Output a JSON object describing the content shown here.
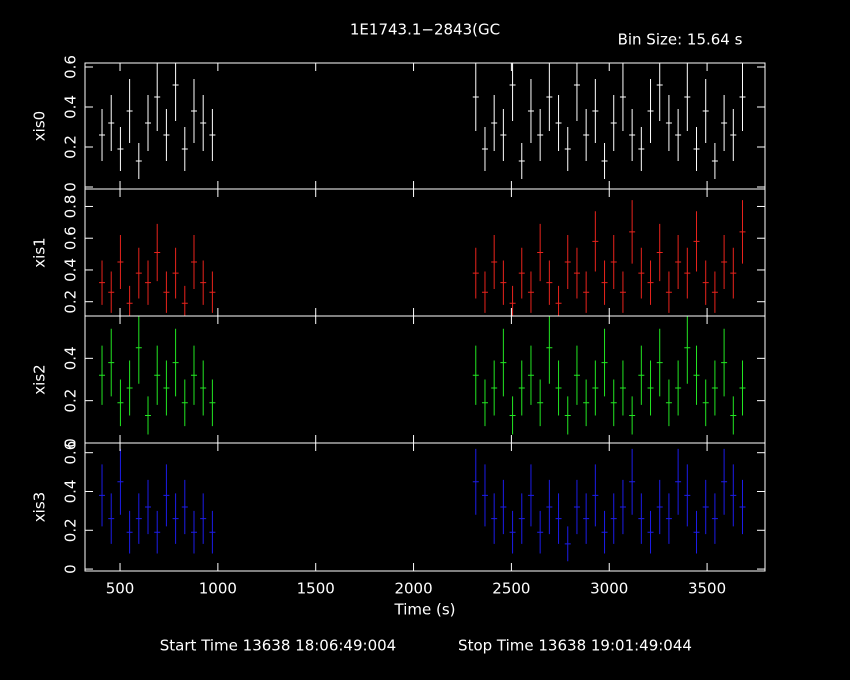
{
  "chart_data": [
    {
      "type": "errorbar",
      "title": "1E1743.1−2843(GC",
      "subtitle": "Bin Size: 15.64 s",
      "ylabel": "xis0",
      "color": "#ffffff",
      "x": [
        408,
        455,
        502,
        549,
        596,
        643,
        690,
        737,
        784,
        831,
        878,
        925,
        972,
        2318,
        2365,
        2412,
        2459,
        2506,
        2553,
        2600,
        2647,
        2694,
        2741,
        2788,
        2835,
        2882,
        2929,
        2976,
        3023,
        3070,
        3117,
        3164,
        3211,
        3258,
        3305,
        3352,
        3399,
        3446,
        3493,
        3540,
        3587,
        3634,
        3681
      ],
      "values": [
        0.26,
        0.32,
        0.19,
        0.38,
        0.13,
        0.32,
        0.45,
        0.26,
        0.51,
        0.19,
        0.38,
        0.32,
        0.26,
        0.45,
        0.19,
        0.32,
        0.26,
        0.51,
        0.13,
        0.38,
        0.26,
        0.45,
        0.32,
        0.19,
        0.51,
        0.26,
        0.38,
        0.13,
        0.32,
        0.45,
        0.26,
        0.19,
        0.38,
        0.51,
        0.32,
        0.26,
        0.45,
        0.19,
        0.38,
        0.13,
        0.32,
        0.26,
        0.45
      ],
      "errors": [
        0.13,
        0.14,
        0.11,
        0.16,
        0.09,
        0.14,
        0.17,
        0.13,
        0.18,
        0.11,
        0.16,
        0.14,
        0.13,
        0.17,
        0.11,
        0.14,
        0.13,
        0.18,
        0.09,
        0.16,
        0.13,
        0.17,
        0.14,
        0.11,
        0.18,
        0.13,
        0.16,
        0.09,
        0.14,
        0.17,
        0.13,
        0.11,
        0.16,
        0.18,
        0.14,
        0.13,
        0.17,
        0.11,
        0.16,
        0.09,
        0.14,
        0.13,
        0.17
      ],
      "xlim": [
        321,
        3796
      ],
      "ylim": [
        -0.01,
        0.62
      ],
      "yticks": [
        0,
        0.2,
        0.4,
        0.6
      ]
    },
    {
      "type": "errorbar",
      "ylabel": "xis1",
      "color": "#e8231c",
      "x": [
        408,
        455,
        502,
        549,
        596,
        643,
        690,
        737,
        784,
        831,
        878,
        925,
        972,
        2318,
        2365,
        2412,
        2459,
        2506,
        2553,
        2600,
        2647,
        2694,
        2741,
        2788,
        2835,
        2882,
        2929,
        2976,
        3023,
        3070,
        3117,
        3164,
        3211,
        3258,
        3305,
        3352,
        3399,
        3446,
        3493,
        3540,
        3587,
        3634,
        3681
      ],
      "values": [
        0.32,
        0.26,
        0.45,
        0.19,
        0.38,
        0.32,
        0.51,
        0.26,
        0.38,
        0.19,
        0.45,
        0.32,
        0.26,
        0.38,
        0.26,
        0.45,
        0.32,
        0.19,
        0.38,
        0.26,
        0.51,
        0.32,
        0.19,
        0.45,
        0.38,
        0.26,
        0.58,
        0.32,
        0.45,
        0.26,
        0.64,
        0.38,
        0.32,
        0.51,
        0.26,
        0.45,
        0.38,
        0.58,
        0.32,
        0.26,
        0.45,
        0.38,
        0.64
      ],
      "errors": [
        0.14,
        0.13,
        0.17,
        0.11,
        0.16,
        0.14,
        0.18,
        0.13,
        0.16,
        0.11,
        0.17,
        0.14,
        0.13,
        0.16,
        0.13,
        0.17,
        0.14,
        0.11,
        0.16,
        0.13,
        0.18,
        0.14,
        0.11,
        0.17,
        0.16,
        0.13,
        0.19,
        0.14,
        0.17,
        0.13,
        0.2,
        0.16,
        0.14,
        0.18,
        0.13,
        0.17,
        0.16,
        0.19,
        0.14,
        0.13,
        0.17,
        0.16,
        0.2
      ],
      "xlim": [
        321,
        3796
      ],
      "ylim": [
        0.11,
        0.91
      ],
      "yticks": [
        0.2,
        0.4,
        0.6,
        0.8
      ]
    },
    {
      "type": "errorbar",
      "ylabel": "xis2",
      "color": "#22e622",
      "x": [
        408,
        455,
        502,
        549,
        596,
        643,
        690,
        737,
        784,
        831,
        878,
        925,
        972,
        2318,
        2365,
        2412,
        2459,
        2506,
        2553,
        2600,
        2647,
        2694,
        2741,
        2788,
        2835,
        2882,
        2929,
        2976,
        3023,
        3070,
        3117,
        3164,
        3211,
        3258,
        3305,
        3352,
        3399,
        3446,
        3493,
        3540,
        3587,
        3634,
        3681
      ],
      "values": [
        0.32,
        0.38,
        0.19,
        0.26,
        0.45,
        0.13,
        0.32,
        0.26,
        0.38,
        0.19,
        0.32,
        0.26,
        0.19,
        0.32,
        0.19,
        0.26,
        0.38,
        0.13,
        0.26,
        0.32,
        0.19,
        0.45,
        0.26,
        0.13,
        0.32,
        0.19,
        0.26,
        0.38,
        0.19,
        0.26,
        0.13,
        0.32,
        0.26,
        0.38,
        0.19,
        0.26,
        0.45,
        0.32,
        0.19,
        0.26,
        0.38,
        0.13,
        0.26
      ],
      "errors": [
        0.14,
        0.16,
        0.11,
        0.13,
        0.17,
        0.09,
        0.14,
        0.13,
        0.16,
        0.11,
        0.14,
        0.13,
        0.11,
        0.14,
        0.11,
        0.13,
        0.16,
        0.09,
        0.13,
        0.14,
        0.11,
        0.17,
        0.13,
        0.09,
        0.14,
        0.11,
        0.13,
        0.16,
        0.11,
        0.13,
        0.09,
        0.14,
        0.13,
        0.16,
        0.11,
        0.13,
        0.17,
        0.14,
        0.11,
        0.13,
        0.16,
        0.09,
        0.13
      ],
      "xlim": [
        321,
        3796
      ],
      "ylim": [
        0,
        0.6
      ],
      "yticks": [
        0,
        0.2,
        0.4
      ]
    },
    {
      "type": "errorbar",
      "ylabel": "xis3",
      "xlabel": "Time (s)",
      "color": "#1c1ce8",
      "x": [
        408,
        455,
        502,
        549,
        596,
        643,
        690,
        737,
        784,
        831,
        878,
        925,
        972,
        2318,
        2365,
        2412,
        2459,
        2506,
        2553,
        2600,
        2647,
        2694,
        2741,
        2788,
        2835,
        2882,
        2929,
        2976,
        3023,
        3070,
        3117,
        3164,
        3211,
        3258,
        3305,
        3352,
        3399,
        3446,
        3493,
        3540,
        3587,
        3634,
        3681
      ],
      "values": [
        0.38,
        0.26,
        0.45,
        0.19,
        0.26,
        0.32,
        0.19,
        0.38,
        0.26,
        0.32,
        0.19,
        0.26,
        0.19,
        0.45,
        0.38,
        0.26,
        0.32,
        0.19,
        0.26,
        0.38,
        0.19,
        0.32,
        0.26,
        0.13,
        0.32,
        0.26,
        0.38,
        0.19,
        0.26,
        0.32,
        0.45,
        0.26,
        0.19,
        0.32,
        0.26,
        0.45,
        0.38,
        0.19,
        0.32,
        0.26,
        0.45,
        0.38,
        0.32
      ],
      "errors": [
        0.16,
        0.13,
        0.17,
        0.11,
        0.13,
        0.14,
        0.11,
        0.16,
        0.13,
        0.14,
        0.11,
        0.13,
        0.11,
        0.17,
        0.16,
        0.13,
        0.14,
        0.11,
        0.13,
        0.16,
        0.11,
        0.14,
        0.13,
        0.09,
        0.14,
        0.13,
        0.16,
        0.11,
        0.13,
        0.14,
        0.17,
        0.13,
        0.11,
        0.14,
        0.13,
        0.17,
        0.16,
        0.11,
        0.14,
        0.13,
        0.17,
        0.16,
        0.14
      ],
      "xlim": [
        321,
        3796
      ],
      "ylim": [
        -0.01,
        0.65
      ],
      "yticks": [
        0,
        0.2,
        0.4,
        0.6
      ],
      "xticks": [
        500,
        1000,
        1500,
        2000,
        2500,
        3000,
        3500
      ]
    }
  ],
  "footer": {
    "start": "Start Time 13638 18:06:49:004",
    "stop": "Stop Time 13638 19:01:49:044"
  }
}
